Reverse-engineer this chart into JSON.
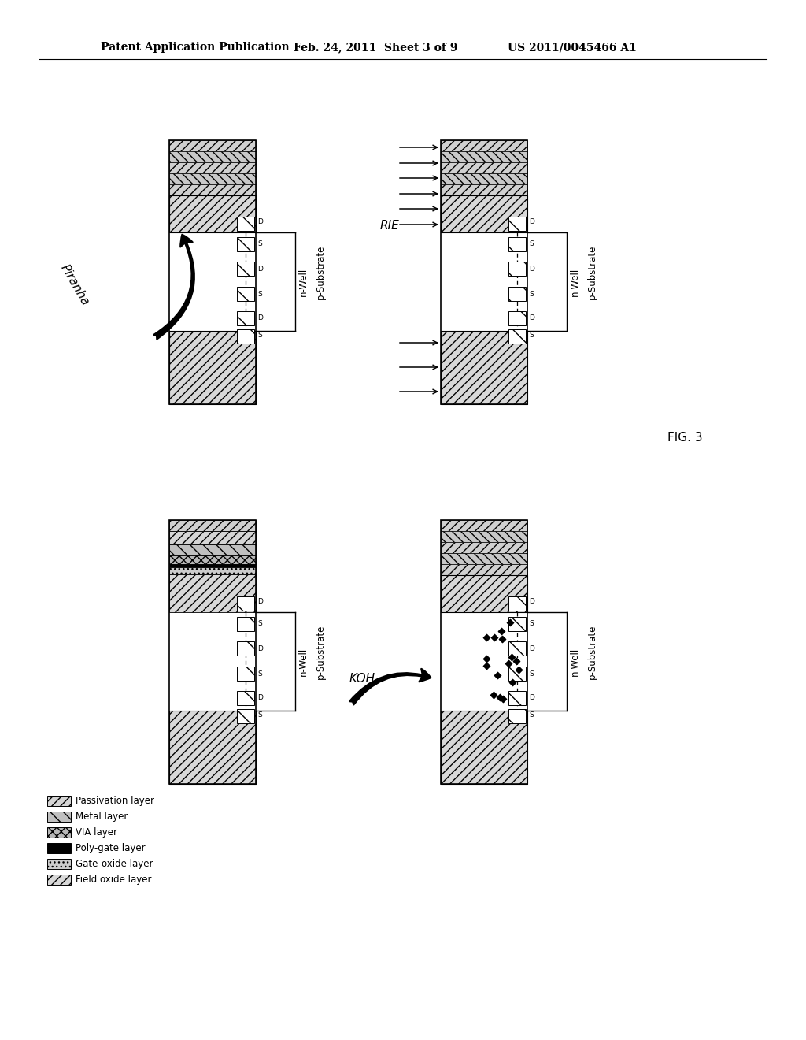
{
  "header_left": "Patent Application Publication",
  "header_center": "Feb. 24, 2011  Sheet 3 of 9",
  "header_right": "US 2011/0045466 A1",
  "fig_label": "FIG. 3",
  "background": "#ffffff",
  "panels": [
    {
      "label": "Piranha",
      "label_pos": "left",
      "style": "piranha"
    },
    {
      "label": "RIE",
      "label_pos": "left",
      "style": "rie"
    },
    {
      "label": "",
      "label_pos": "none",
      "style": "layers"
    },
    {
      "label": "KOH",
      "label_pos": "left",
      "style": "koh"
    }
  ],
  "legend": [
    {
      "hatch": "///",
      "fc": "#d0d0d0",
      "label": "Passivation layer"
    },
    {
      "hatch": "\\\\",
      "fc": "#c0c0c0",
      "label": "Metal layer"
    },
    {
      "hatch": "xxx",
      "fc": "#b8b8b8",
      "label": "VIA layer"
    },
    {
      "hatch": "",
      "fc": "#000000",
      "label": "Poly-gate layer"
    },
    {
      "hatch": "...",
      "fc": "#c8c8c8",
      "label": "Gate-oxide layer"
    },
    {
      "hatch": "///",
      "fc": "#d8d8d8",
      "label": "Field oxide layer"
    }
  ]
}
